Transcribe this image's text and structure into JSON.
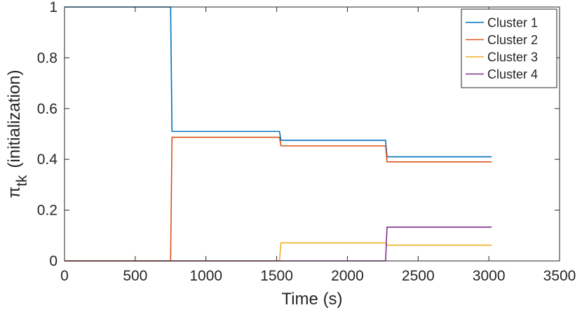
{
  "chart_data": {
    "type": "line",
    "xlabel": "Time (s)",
    "ylabel_symbol": "π",
    "ylabel_subscript": "tk",
    "ylabel_suffix": "(initialization)",
    "xlim": [
      0,
      3500
    ],
    "ylim": [
      0,
      1
    ],
    "xticks": [
      0,
      500,
      1000,
      1500,
      2000,
      2500,
      3000,
      3500
    ],
    "yticks": [
      0,
      0.2,
      0.4,
      0.6,
      0.8,
      1
    ],
    "ytick_labels": [
      "0",
      "0.2",
      "0.4",
      "0.6",
      "0.8",
      "1"
    ],
    "grid": false,
    "legend_position": "top-right",
    "series": [
      {
        "name": "Cluster 1",
        "color": "#0072BD",
        "points": [
          [
            0,
            1
          ],
          [
            750,
            1
          ],
          [
            760,
            0.51
          ],
          [
            1520,
            0.51
          ],
          [
            1530,
            0.475
          ],
          [
            2270,
            0.475
          ],
          [
            2280,
            0.41
          ],
          [
            3020,
            0.41
          ]
        ]
      },
      {
        "name": "Cluster 2",
        "color": "#D95319",
        "points": [
          [
            0,
            0
          ],
          [
            750,
            0
          ],
          [
            760,
            0.487
          ],
          [
            1520,
            0.487
          ],
          [
            1530,
            0.453
          ],
          [
            2270,
            0.453
          ],
          [
            2280,
            0.39
          ],
          [
            3020,
            0.39
          ]
        ]
      },
      {
        "name": "Cluster 3",
        "color": "#EDB120",
        "points": [
          [
            0,
            0
          ],
          [
            1520,
            0
          ],
          [
            1530,
            0.071
          ],
          [
            2270,
            0.071
          ],
          [
            2280,
            0.062
          ],
          [
            3020,
            0.062
          ]
        ]
      },
      {
        "name": "Cluster 4",
        "color": "#7E2F8E",
        "points": [
          [
            0,
            0
          ],
          [
            2270,
            0
          ],
          [
            2280,
            0.133
          ],
          [
            3020,
            0.133
          ]
        ]
      }
    ]
  }
}
